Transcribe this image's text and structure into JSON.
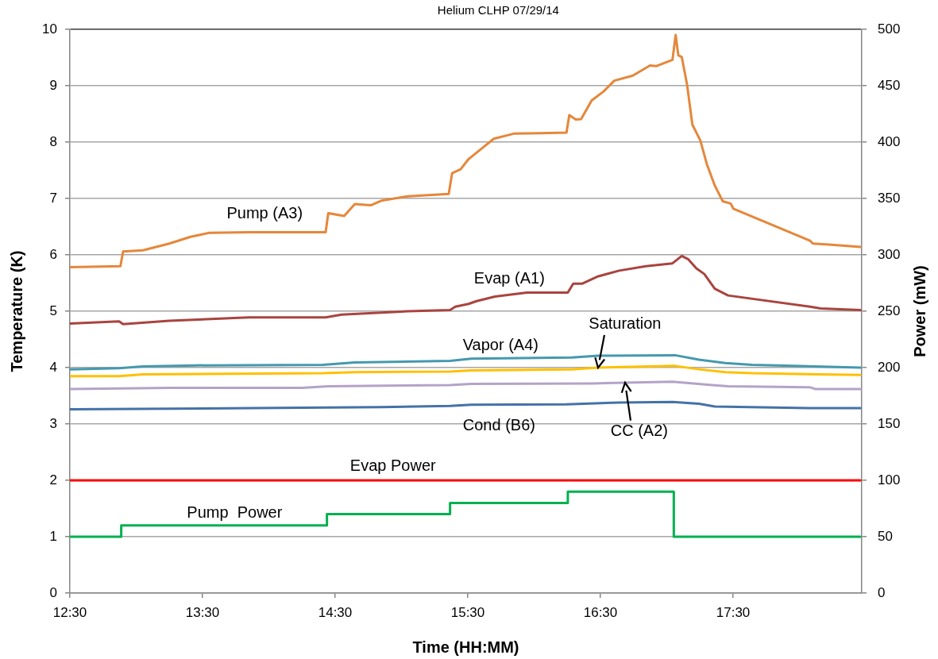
{
  "chart_data": {
    "type": "line",
    "title": "Helium CLHP 07/29/14",
    "xlabel": "Time (HH:MM)",
    "ylabel": "Temperature (K)",
    "y2label": "Power (mW)",
    "xlim": [
      12.5,
      18.47
    ],
    "xticks": [
      {
        "value": 12.5,
        "label": "12:30"
      },
      {
        "value": 13.5,
        "label": "13:30"
      },
      {
        "value": 14.5,
        "label": "14:30"
      },
      {
        "value": 15.5,
        "label": "15:30"
      },
      {
        "value": 16.5,
        "label": "16:30"
      },
      {
        "value": 17.5,
        "label": "17:30"
      }
    ],
    "ylim": [
      0,
      10
    ],
    "yticks": [
      0,
      1,
      2,
      3,
      4,
      5,
      6,
      7,
      8,
      9,
      10
    ],
    "y2lim": [
      0,
      500
    ],
    "y2ticks": [
      0,
      50,
      100,
      150,
      200,
      250,
      300,
      350,
      400,
      450,
      500
    ],
    "grid": "y",
    "marker": "none",
    "series": [
      {
        "name": "Pump (A3)",
        "color": "#e5873a",
        "x": [
          12.5,
          12.881,
          12.901,
          13.051,
          13.25,
          13.41,
          13.55,
          13.849,
          14.428,
          14.448,
          14.568,
          14.648,
          14.768,
          14.847,
          15.047,
          15.356,
          15.382,
          15.446,
          15.506,
          15.606,
          15.696,
          15.846,
          16.045,
          16.244,
          16.265,
          16.314,
          16.354,
          16.434,
          16.524,
          16.604,
          16.744,
          16.873,
          16.923,
          17.043,
          17.067,
          17.087,
          17.113,
          17.153,
          17.193,
          17.253,
          17.302,
          17.362,
          17.422,
          17.482,
          17.502,
          18.081,
          18.101,
          18.241,
          18.46
        ],
        "values": [
          5.78,
          5.8,
          6.06,
          6.08,
          6.2,
          6.32,
          6.39,
          6.4,
          6.4,
          6.74,
          6.69,
          6.9,
          6.88,
          6.96,
          7.04,
          7.08,
          7.45,
          7.52,
          7.7,
          7.89,
          8.06,
          8.15,
          8.16,
          8.17,
          8.48,
          8.4,
          8.41,
          8.74,
          8.9,
          9.09,
          9.18,
          9.36,
          9.35,
          9.46,
          9.9,
          9.54,
          9.51,
          9.02,
          8.31,
          8.03,
          7.61,
          7.23,
          6.95,
          6.91,
          6.82,
          6.25,
          6.2,
          6.18,
          6.14
        ]
      },
      {
        "name": "Evap (A1)",
        "color": "#a9443f",
        "x": [
          12.5,
          12.871,
          12.901,
          13.25,
          13.849,
          14.428,
          14.548,
          15.047,
          15.366,
          15.406,
          15.506,
          15.566,
          15.705,
          15.945,
          16.254,
          16.295,
          16.364,
          16.484,
          16.641,
          16.843,
          17.043,
          17.113,
          17.163,
          17.223,
          17.283,
          17.362,
          17.462,
          18.081,
          18.16,
          18.46
        ],
        "values": [
          4.78,
          4.82,
          4.77,
          4.83,
          4.89,
          4.89,
          4.94,
          5.0,
          5.02,
          5.08,
          5.13,
          5.18,
          5.26,
          5.33,
          5.33,
          5.49,
          5.49,
          5.62,
          5.72,
          5.8,
          5.85,
          5.98,
          5.92,
          5.76,
          5.66,
          5.4,
          5.28,
          5.08,
          5.05,
          5.02
        ]
      },
      {
        "name": "Vapor (A4)",
        "color": "#4599ae",
        "x": [
          12.5,
          12.871,
          13.051,
          13.45,
          14.408,
          14.648,
          15.366,
          15.526,
          16.284,
          16.484,
          17.063,
          17.243,
          17.442,
          17.642,
          18.46
        ],
        "values": [
          3.97,
          3.99,
          4.02,
          4.04,
          4.05,
          4.09,
          4.12,
          4.16,
          4.18,
          4.21,
          4.22,
          4.14,
          4.08,
          4.05,
          4.0
        ]
      },
      {
        "name": "Saturation",
        "color": "#ffc000",
        "x": [
          12.5,
          12.871,
          13.051,
          14.408,
          14.648,
          15.366,
          15.526,
          16.284,
          16.484,
          17.063,
          17.243,
          17.442,
          17.642,
          18.46
        ],
        "values": [
          3.85,
          3.85,
          3.88,
          3.9,
          3.92,
          3.93,
          3.95,
          3.97,
          4.0,
          4.03,
          3.97,
          3.92,
          3.9,
          3.87
        ]
      },
      {
        "name": "CC (A2)",
        "color": "#b4a3c8",
        "x": [
          12.5,
          13.25,
          14.249,
          14.448,
          15.366,
          15.526,
          16.444,
          17.043,
          17.342,
          17.462,
          18.081,
          18.121,
          18.46
        ],
        "values": [
          3.62,
          3.64,
          3.64,
          3.67,
          3.69,
          3.71,
          3.72,
          3.75,
          3.69,
          3.67,
          3.65,
          3.62,
          3.62
        ]
      },
      {
        "name": "Cond (B6)",
        "color": "#4472a8",
        "x": [
          12.5,
          13.25,
          14.249,
          14.847,
          15.366,
          15.526,
          16.244,
          16.644,
          17.043,
          17.243,
          17.362,
          18.081,
          18.46
        ],
        "values": [
          3.26,
          3.27,
          3.29,
          3.3,
          3.32,
          3.34,
          3.35,
          3.38,
          3.39,
          3.36,
          3.31,
          3.28,
          3.28
        ]
      },
      {
        "name": "Evap Power",
        "color": "#ff0000",
        "axis": "y2",
        "x": [
          12.5,
          18.46
        ],
        "values": [
          100,
          100
        ]
      },
      {
        "name": "Pump  Power",
        "color": "#00b050",
        "type": "step",
        "axis": "y2",
        "x": [
          12.5,
          12.887,
          14.438,
          15.366,
          16.254,
          17.053,
          18.46
        ],
        "values": [
          50,
          60,
          70,
          80,
          90,
          50,
          50
        ]
      }
    ]
  }
}
